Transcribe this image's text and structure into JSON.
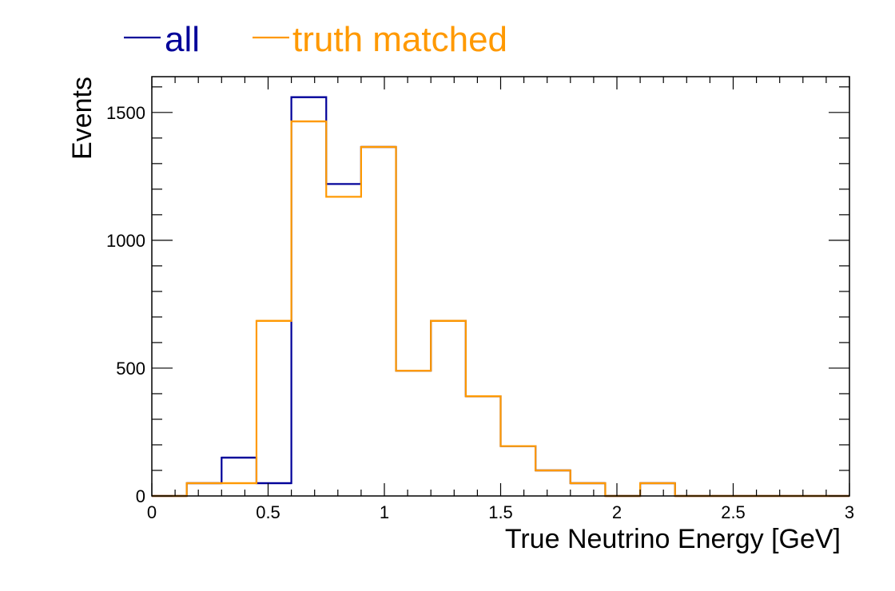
{
  "chart_data": {
    "type": "step-histogram",
    "xlabel": "True Neutrino Energy [GeV]",
    "ylabel": "Events",
    "xlim": [
      0,
      3
    ],
    "ylim": [
      0,
      1640
    ],
    "bin_edges": [
      0,
      0.15,
      0.3,
      0.45,
      0.6,
      0.75,
      0.9,
      1.05,
      1.2,
      1.35,
      1.5,
      1.65,
      1.8,
      1.95,
      2.1,
      2.25,
      2.4,
      2.55,
      2.7,
      2.85,
      3.0
    ],
    "x_ticks": [
      {
        "value": 0,
        "label": "0"
      },
      {
        "value": 0.5,
        "label": "0.5"
      },
      {
        "value": 1,
        "label": "1"
      },
      {
        "value": 1.5,
        "label": "1.5"
      },
      {
        "value": 2,
        "label": "2"
      },
      {
        "value": 2.5,
        "label": "2.5"
      },
      {
        "value": 3,
        "label": "3"
      }
    ],
    "y_ticks": [
      {
        "value": 0,
        "label": "0"
      },
      {
        "value": 500,
        "label": "500"
      },
      {
        "value": 1000,
        "label": "1000"
      },
      {
        "value": 1500,
        "label": "1500"
      }
    ],
    "legend_position": "top",
    "series": [
      {
        "name": "all",
        "color": "#000099",
        "values": [
          0,
          50,
          150,
          50,
          1560,
          1220,
          1365,
          490,
          685,
          390,
          195,
          100,
          50,
          0,
          50,
          0,
          0,
          0,
          0,
          0
        ]
      },
      {
        "name": "truth matched",
        "color": "#ff9900",
        "values": [
          0,
          50,
          50,
          685,
          1465,
          1170,
          1365,
          490,
          685,
          390,
          195,
          100,
          50,
          0,
          50,
          0,
          0,
          0,
          0,
          0
        ]
      }
    ]
  }
}
